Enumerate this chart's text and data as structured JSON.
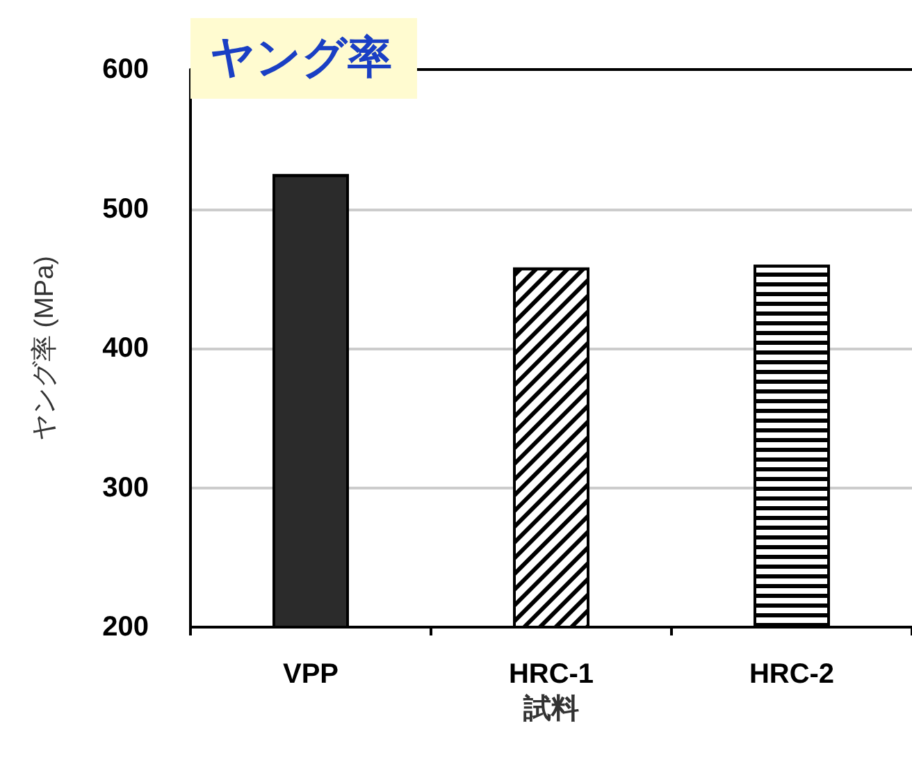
{
  "chart_data": {
    "type": "bar",
    "title": "ヤング率",
    "xlabel": "試料",
    "ylabel": "ヤング率 (MPa)",
    "categories": [
      "VPP",
      "HRC-1",
      "HRC-2"
    ],
    "values": [
      525,
      458,
      460
    ],
    "colors": [
      "#2b2b2b",
      "#ffffff",
      "#ffffff"
    ],
    "ylim": [
      200,
      600
    ],
    "yticks": [
      200,
      300,
      400,
      500,
      600
    ],
    "grid": "y"
  }
}
